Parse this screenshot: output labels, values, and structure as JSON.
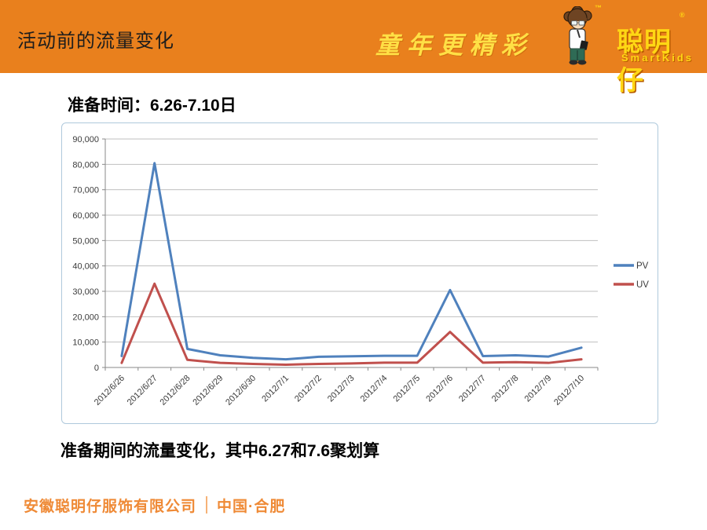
{
  "header": {
    "title": "活动前的流量变化",
    "slogan": "童年更精彩",
    "logo": {
      "brand": "聪明仔",
      "sub": "SmartKids",
      "tm": "™",
      "reg": "®"
    }
  },
  "subtitle": "准备时间：6.26-7.10日",
  "caption": "准备期间的流量变化，其中6.27和7.6聚划算",
  "footer": {
    "company": "安徽聪明仔服饰有限公司",
    "location": "中国·合肥"
  },
  "colors": {
    "header_bg": "#E9801D",
    "logo_yellow": "#FFD714",
    "slogan_yellow": "#FFE045",
    "footer_orange": "#EF8A36",
    "grid": "#BFBFBF",
    "axis": "#898989",
    "tick_label": "#3B3B3B",
    "pv_blue": "#4F81BD",
    "uv_red": "#C0504D"
  },
  "chart_data": {
    "type": "line",
    "title": "",
    "xlabel": "",
    "ylabel": "",
    "categories": [
      "2012/6/26",
      "2012/6/27",
      "2012/6/28",
      "2012/6/29",
      "2012/6/30",
      "2012/7/1",
      "2012/7/2",
      "2012/7/3",
      "2012/7/4",
      "2012/7/5",
      "2012/7/6",
      "2012/7/7",
      "2012/7/8",
      "2012/7/9",
      "2012/7/10"
    ],
    "series": [
      {
        "name": "PV",
        "color": "#4F81BD",
        "values": [
          4500,
          80500,
          7300,
          4800,
          3800,
          3200,
          4200,
          4400,
          4600,
          4600,
          30500,
          4500,
          4800,
          4300,
          7800
        ]
      },
      {
        "name": "UV",
        "color": "#C0504D",
        "values": [
          1800,
          33000,
          3000,
          1800,
          1400,
          1100,
          1400,
          1600,
          1900,
          1900,
          14000,
          1900,
          2100,
          1800,
          3200
        ]
      }
    ],
    "ylim": [
      0,
      90000
    ],
    "ytick_step": 10000,
    "ytick_labels": [
      "0",
      "10,000",
      "20,000",
      "30,000",
      "40,000",
      "50,000",
      "60,000",
      "70,000",
      "80,000",
      "90,000"
    ],
    "grid": true,
    "legend_position": "right",
    "x_label_rotation": -45
  }
}
